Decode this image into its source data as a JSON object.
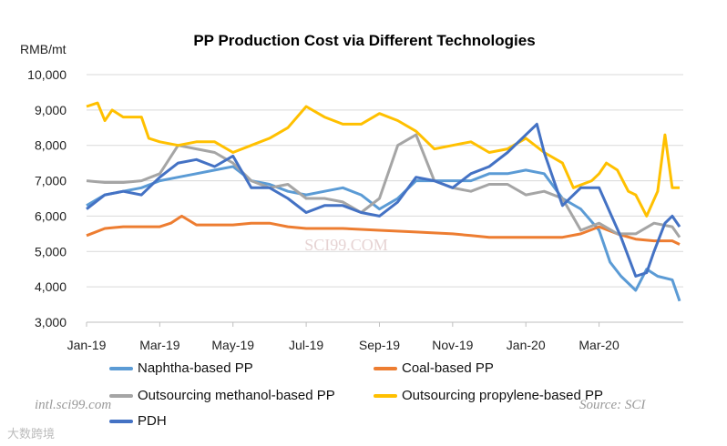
{
  "chart_data": {
    "type": "line",
    "title": "PP Production Cost via Different Technologies",
    "ylabel": "RMB/mt",
    "xlabel": "",
    "ylim": [
      3000,
      10000
    ],
    "yticks": [
      3000,
      4000,
      5000,
      6000,
      7000,
      8000,
      9000,
      10000
    ],
    "ytick_labels": [
      "3,000",
      "4,000",
      "5,000",
      "6,000",
      "7,000",
      "8,000",
      "9,000",
      "10,000"
    ],
    "x_unit": "months since Jan-19",
    "xlim": [
      0,
      16.3
    ],
    "xticks": [
      0,
      2,
      4,
      6,
      8,
      10,
      12,
      14
    ],
    "xtick_labels": [
      "Jan-19",
      "Mar-19",
      "May-19",
      "Jul-19",
      "Sep-19",
      "Nov-19",
      "Jan-20",
      "Mar-20"
    ],
    "grid": "horizontal",
    "legend_position": "bottom",
    "series": [
      {
        "name": "Naphtha-based PP",
        "color": "#5B9BD5",
        "x": [
          0,
          0.5,
          1,
          1.5,
          2,
          2.5,
          3,
          3.5,
          4,
          4.5,
          5,
          5.5,
          6,
          6.5,
          7,
          7.5,
          8,
          8.5,
          9,
          9.5,
          10,
          10.5,
          11,
          11.5,
          12,
          12.5,
          13,
          13.5,
          14,
          14.3,
          14.6,
          15,
          15.3,
          15.6,
          16,
          16.2
        ],
        "values": [
          6300,
          6600,
          6700,
          6800,
          7000,
          7100,
          7200,
          7300,
          7400,
          7000,
          6900,
          6700,
          6600,
          6700,
          6800,
          6600,
          6200,
          6500,
          7000,
          7000,
          7000,
          7000,
          7200,
          7200,
          7300,
          7200,
          6500,
          6200,
          5600,
          4700,
          4300,
          3900,
          4500,
          4300,
          4200,
          3600
        ]
      },
      {
        "name": "Coal-based PP",
        "color": "#ED7D31",
        "x": [
          0,
          0.5,
          1,
          2,
          2.3,
          2.6,
          3,
          4,
          4.5,
          5,
          5.5,
          6,
          7,
          8,
          9,
          10,
          10.5,
          11,
          12,
          13,
          13.5,
          14,
          14.5,
          15,
          15.5,
          16,
          16.2
        ],
        "values": [
          5450,
          5650,
          5700,
          5700,
          5800,
          6000,
          5750,
          5750,
          5800,
          5800,
          5700,
          5650,
          5650,
          5600,
          5550,
          5500,
          5450,
          5400,
          5400,
          5400,
          5500,
          5700,
          5500,
          5350,
          5300,
          5300,
          5200
        ]
      },
      {
        "name": "Outsourcing methanol-based PP",
        "color": "#A5A5A5",
        "x": [
          0,
          0.5,
          1,
          1.5,
          2,
          2.5,
          3,
          3.5,
          4,
          4.5,
          5,
          5.5,
          6,
          6.5,
          7,
          7.5,
          8,
          8.5,
          9,
          9.5,
          10,
          10.5,
          11,
          11.5,
          12,
          12.5,
          13,
          13.5,
          14,
          14.5,
          15,
          15.5,
          16,
          16.2
        ],
        "values": [
          7000,
          6950,
          6950,
          7000,
          7200,
          8000,
          7900,
          7800,
          7500,
          7000,
          6800,
          6900,
          6500,
          6500,
          6400,
          6100,
          6500,
          8000,
          8300,
          7000,
          6800,
          6700,
          6900,
          6900,
          6600,
          6700,
          6500,
          5600,
          5800,
          5500,
          5500,
          5800,
          5700,
          5400
        ]
      },
      {
        "name": "Outsourcing propylene-based PP",
        "color": "#FFC000",
        "x": [
          0,
          0.3,
          0.5,
          0.7,
          1,
          1.5,
          1.7,
          2,
          2.5,
          3,
          3.5,
          4,
          4.5,
          5,
          5.5,
          6,
          6.5,
          7,
          7.5,
          8,
          8.5,
          9,
          9.5,
          10,
          10.5,
          11,
          11.5,
          12,
          12.5,
          13,
          13.3,
          13.8,
          14,
          14.2,
          14.5,
          14.8,
          15,
          15.3,
          15.6,
          15.8,
          16,
          16.2
        ],
        "values": [
          9100,
          9200,
          8700,
          9000,
          8800,
          8800,
          8200,
          8100,
          8000,
          8100,
          8100,
          7800,
          8000,
          8200,
          8500,
          9100,
          8800,
          8600,
          8600,
          8900,
          8700,
          8400,
          7900,
          8000,
          8100,
          7800,
          7900,
          8200,
          7800,
          7500,
          6800,
          7000,
          7200,
          7500,
          7300,
          6700,
          6600,
          6000,
          6700,
          8300,
          6800,
          6800
        ]
      },
      {
        "name": "PDH",
        "color": "#4472C4",
        "x": [
          0,
          0.5,
          1,
          1.5,
          2,
          2.5,
          3,
          3.5,
          4,
          4.5,
          5,
          5.5,
          6,
          6.5,
          7,
          7.5,
          8,
          8.5,
          9,
          9.5,
          10,
          10.5,
          11,
          11.5,
          12,
          12.3,
          12.5,
          13,
          13.5,
          14,
          14.3,
          14.6,
          15,
          15.3,
          15.5,
          15.8,
          16,
          16.2
        ],
        "values": [
          6200,
          6600,
          6700,
          6600,
          7100,
          7500,
          7600,
          7400,
          7700,
          6800,
          6800,
          6500,
          6100,
          6300,
          6300,
          6100,
          6000,
          6400,
          7100,
          7000,
          6800,
          7200,
          7400,
          7800,
          8300,
          8600,
          7800,
          6300,
          6800,
          6800,
          6100,
          5400,
          4300,
          4400,
          5000,
          5800,
          6000,
          5700
        ]
      }
    ]
  },
  "watermarks": {
    "site": "intl.sci99.com",
    "source": "Source: SCI",
    "center": "SCI99.COM",
    "corner": "大数跨境"
  }
}
